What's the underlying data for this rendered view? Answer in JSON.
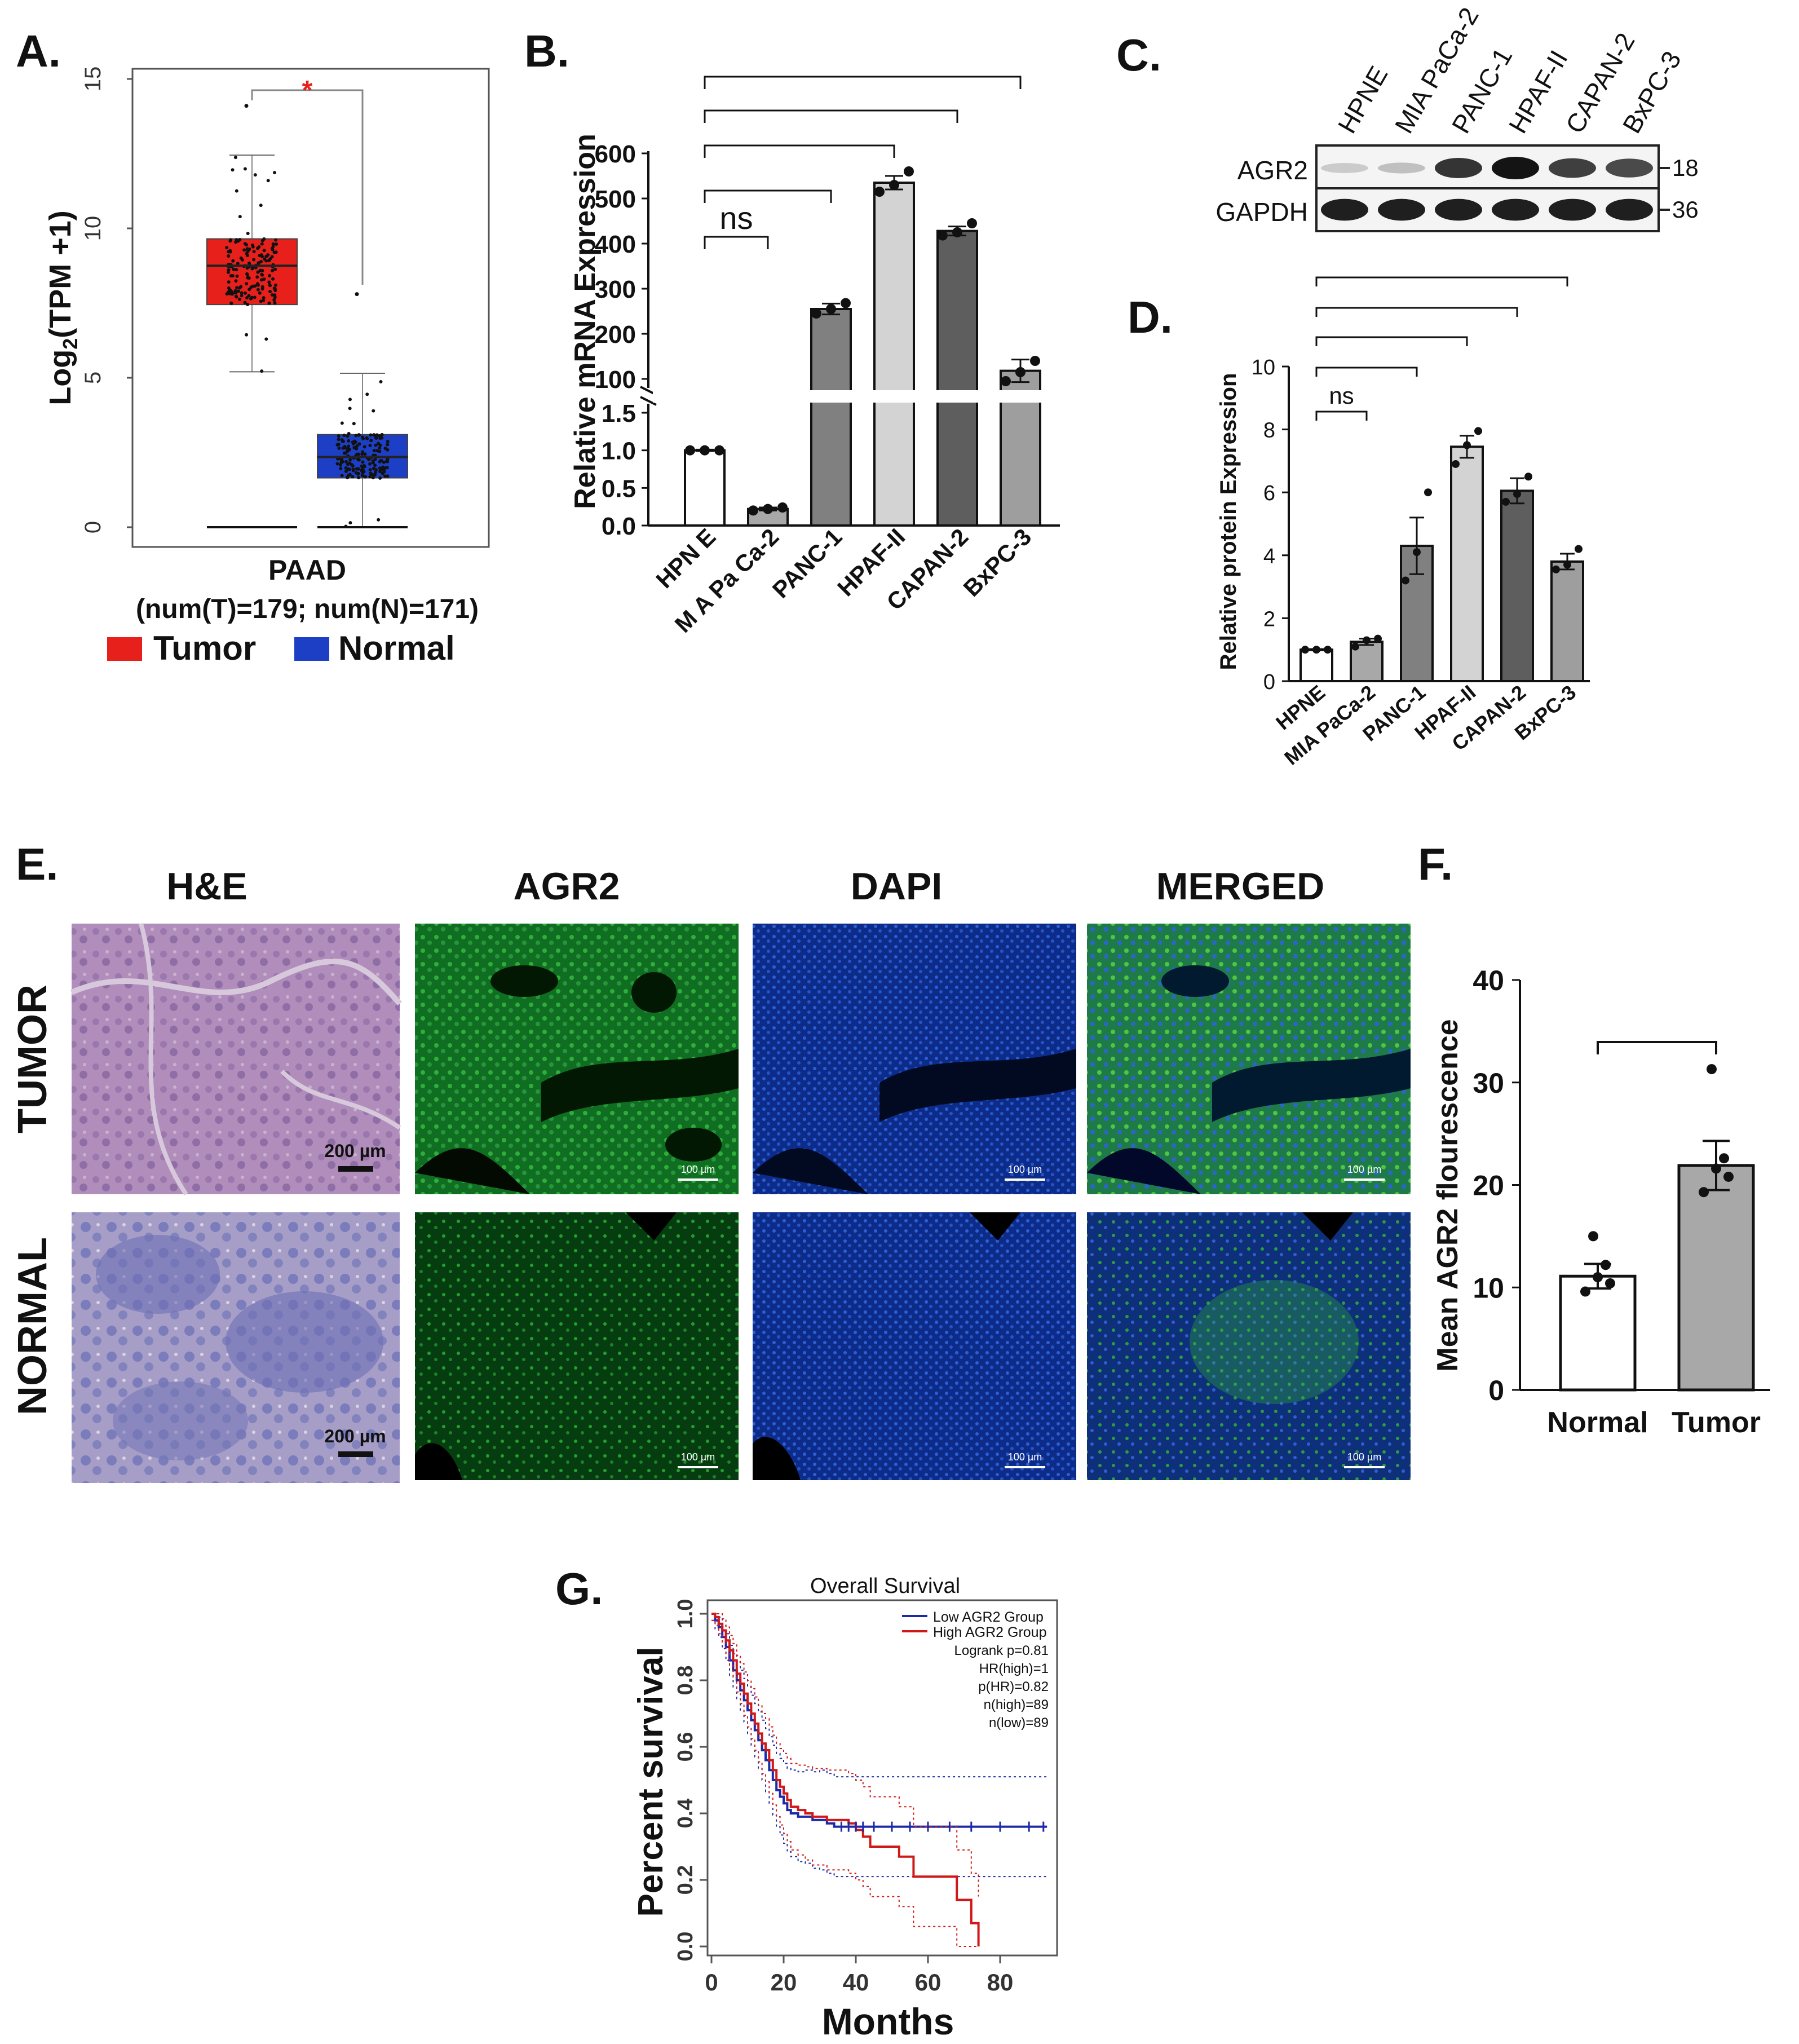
{
  "panels": {
    "A": {
      "letter": "A."
    },
    "B": {
      "letter": "B."
    },
    "C": {
      "letter": "C."
    },
    "D": {
      "letter": "D."
    },
    "E": {
      "letter": "E."
    },
    "F": {
      "letter": "F."
    },
    "G": {
      "letter": "G."
    }
  },
  "colors": {
    "tumor": "#e8201c",
    "normal": "#1d3fc6",
    "bar_white": "#ffffff",
    "bar_gray1": "#a8a8a8",
    "bar_gray2": "#808080",
    "bar_light": "#d3d3d3",
    "bar_dark": "#5e5e5e",
    "bar_mid": "#9e9e9e",
    "survival_low": "#1c2aa8",
    "survival_high": "#d01818"
  },
  "chart_data": [
    {
      "id": "A",
      "type": "box",
      "ylabel_base": "Log",
      "ylabel_sub": "2",
      "ylabel_rest": "(TPM +1)",
      "yticks": [
        "0",
        "5",
        "10",
        "15"
      ],
      "ylim": [
        0,
        15
      ],
      "xlabel": "PAAD",
      "subtitle": "(num(T)=179; num(N)=171)",
      "significance": "*",
      "legend": [
        {
          "name": "Tumor",
          "color": "#e8201c"
        },
        {
          "name": "Normal",
          "color": "#1d3fc6"
        }
      ],
      "boxes": [
        {
          "name": "Tumor",
          "q1": 7.45,
          "median": 8.75,
          "q3": 9.65,
          "whisker_low": 5.2,
          "whisker_high": 12.45,
          "max_outlier": 14.1
        },
        {
          "name": "Normal",
          "q1": 1.65,
          "median": 2.35,
          "q3": 3.1,
          "whisker_low": 0,
          "whisker_high": 5.15,
          "max_outlier": 7.8
        }
      ]
    },
    {
      "id": "B",
      "type": "bar",
      "ylabel": "Relative mRNA Expression",
      "categories": [
        "HPN E",
        "M A Pa Ca-2",
        "PANC-1",
        "HPAF-II",
        "CAPAN-2",
        "BxPC-3"
      ],
      "values": [
        1.0,
        0.22,
        255,
        535,
        428,
        118
      ],
      "errors": [
        0.01,
        0.02,
        12,
        15,
        10,
        25
      ],
      "points": [
        [
          1.0,
          1.0,
          1.0
        ],
        [
          0.2,
          0.22,
          0.24
        ],
        [
          245,
          255,
          268
        ],
        [
          515,
          530,
          560
        ],
        [
          418,
          425,
          445
        ],
        [
          95,
          115,
          140
        ]
      ],
      "upper_yticks": [
        "100",
        "200",
        "300",
        "400",
        "500",
        "600"
      ],
      "lower_yticks": [
        "0.0",
        "0.5",
        "1.0",
        "1.5"
      ],
      "axis_break": true,
      "brackets": [
        {
          "from": 0,
          "to": 1,
          "label": "ns"
        },
        {
          "from": 0,
          "to": 2,
          "label": ""
        },
        {
          "from": 0,
          "to": 3,
          "label": ""
        },
        {
          "from": 0,
          "to": 4,
          "label": ""
        },
        {
          "from": 0,
          "to": 5,
          "label": ""
        }
      ]
    },
    {
      "id": "C",
      "type": "western_blot",
      "lanes": [
        "HPNE",
        "MIA PaCa-2",
        "PANC-1",
        "HPAF-II",
        "CAPAN-2",
        "BxPC-3"
      ],
      "rows": [
        {
          "name": "AGR2",
          "marker": "18",
          "intensity": [
            0.15,
            0.2,
            0.85,
            1.0,
            0.8,
            0.75
          ]
        },
        {
          "name": "GAPDH",
          "marker": "36",
          "intensity": [
            0.95,
            0.95,
            0.95,
            0.95,
            0.95,
            0.95
          ]
        }
      ]
    },
    {
      "id": "D",
      "type": "bar",
      "ylabel": "Relative protein Expression",
      "categories": [
        "HPNE",
        "MIA PaCa-2",
        "PANC-1",
        "HPAF-II",
        "CAPAN-2",
        "BxPC-3"
      ],
      "values": [
        1.0,
        1.25,
        4.3,
        7.45,
        6.05,
        3.8
      ],
      "errors": [
        0.02,
        0.1,
        0.9,
        0.35,
        0.4,
        0.25
      ],
      "points": [
        [
          1.0,
          1.0,
          1.0
        ],
        [
          1.1,
          1.3,
          1.35
        ],
        [
          3.2,
          4.1,
          6.0
        ],
        [
          6.9,
          7.5,
          7.95
        ],
        [
          5.7,
          5.95,
          6.5
        ],
        [
          3.55,
          3.7,
          4.2
        ]
      ],
      "yticks": [
        "0",
        "2",
        "4",
        "6",
        "8",
        "10"
      ],
      "ylim": [
        0,
        10
      ],
      "brackets": [
        {
          "from": 0,
          "to": 1,
          "label": "ns"
        },
        {
          "from": 0,
          "to": 2,
          "label": ""
        },
        {
          "from": 0,
          "to": 3,
          "label": ""
        },
        {
          "from": 0,
          "to": 4,
          "label": ""
        },
        {
          "from": 0,
          "to": 5,
          "label": ""
        }
      ]
    },
    {
      "id": "F",
      "type": "bar",
      "ylabel": "Mean AGR2 flourescence",
      "categories": [
        "Normal",
        "Tumor"
      ],
      "values": [
        11.1,
        21.9
      ],
      "errors": [
        1.2,
        2.4
      ],
      "points": [
        [
          9.6,
          10.4,
          11.0,
          12.2,
          15.0
        ],
        [
          19.3,
          20.8,
          21.6,
          22.6,
          31.3
        ]
      ],
      "yticks": [
        "0",
        "10",
        "20",
        "30",
        "40"
      ],
      "ylim": [
        0,
        40
      ],
      "brackets": [
        {
          "from": 0,
          "to": 1,
          "label": ""
        }
      ]
    },
    {
      "id": "G",
      "type": "line",
      "title": "Overall Survival",
      "xlabel": "Months",
      "ylabel": "Percent survival",
      "xticks": [
        "0",
        "20",
        "40",
        "60",
        "80"
      ],
      "yticks": [
        "0.0",
        "0.2",
        "0.4",
        "0.6",
        "0.8",
        "1.0"
      ],
      "xlim": [
        0,
        95
      ],
      "ylim": [
        0,
        1
      ],
      "legend": [
        "Low AGR2 Group",
        "High AGR2 Group"
      ],
      "stats": [
        "Logrank p=0.81",
        "HR(high)=1",
        "p(HR)=0.82",
        "n(high)=89",
        "n(low)=89"
      ],
      "series": [
        {
          "name": "Low AGR2 Group",
          "color": "#1c2aa8",
          "x": [
            0,
            1,
            2,
            3,
            4,
            5,
            6,
            7,
            8,
            9,
            10,
            11,
            12,
            13,
            14,
            15,
            16,
            17,
            18,
            19,
            20,
            21,
            22,
            24,
            26,
            28,
            30,
            32,
            34,
            36,
            40,
            45,
            60,
            70,
            80,
            93
          ],
          "y": [
            1.0,
            0.98,
            0.96,
            0.93,
            0.9,
            0.86,
            0.83,
            0.8,
            0.77,
            0.74,
            0.71,
            0.68,
            0.65,
            0.62,
            0.59,
            0.56,
            0.53,
            0.5,
            0.47,
            0.45,
            0.43,
            0.41,
            0.4,
            0.39,
            0.39,
            0.38,
            0.38,
            0.37,
            0.36,
            0.36,
            0.36,
            0.36,
            0.36,
            0.36,
            0.36,
            0.36
          ]
        },
        {
          "name": "High AGR2 Group",
          "color": "#d01818",
          "x": [
            0,
            1,
            2,
            3,
            4,
            5,
            6,
            7,
            8,
            9,
            10,
            11,
            12,
            13,
            14,
            15,
            16,
            17,
            18,
            19,
            20,
            21,
            22,
            24,
            26,
            28,
            32,
            36,
            38,
            40,
            42,
            44,
            48,
            52,
            56,
            60,
            64,
            68,
            70,
            72,
            74
          ],
          "y": [
            1.0,
            0.99,
            0.97,
            0.95,
            0.92,
            0.89,
            0.86,
            0.82,
            0.79,
            0.76,
            0.73,
            0.7,
            0.67,
            0.64,
            0.61,
            0.59,
            0.56,
            0.53,
            0.5,
            0.48,
            0.46,
            0.44,
            0.42,
            0.41,
            0.4,
            0.39,
            0.38,
            0.38,
            0.37,
            0.35,
            0.33,
            0.3,
            0.3,
            0.27,
            0.21,
            0.21,
            0.21,
            0.14,
            0.14,
            0.07,
            0.0
          ]
        }
      ]
    }
  ],
  "panelE": {
    "column_titles": [
      "H&E",
      "AGR2",
      "DAPI",
      "MERGED"
    ],
    "row_labels": [
      "TUMOR",
      "NORMAL"
    ],
    "scale_bars": {
      "he": "200 µm",
      "fluor": "100 µm"
    }
  }
}
